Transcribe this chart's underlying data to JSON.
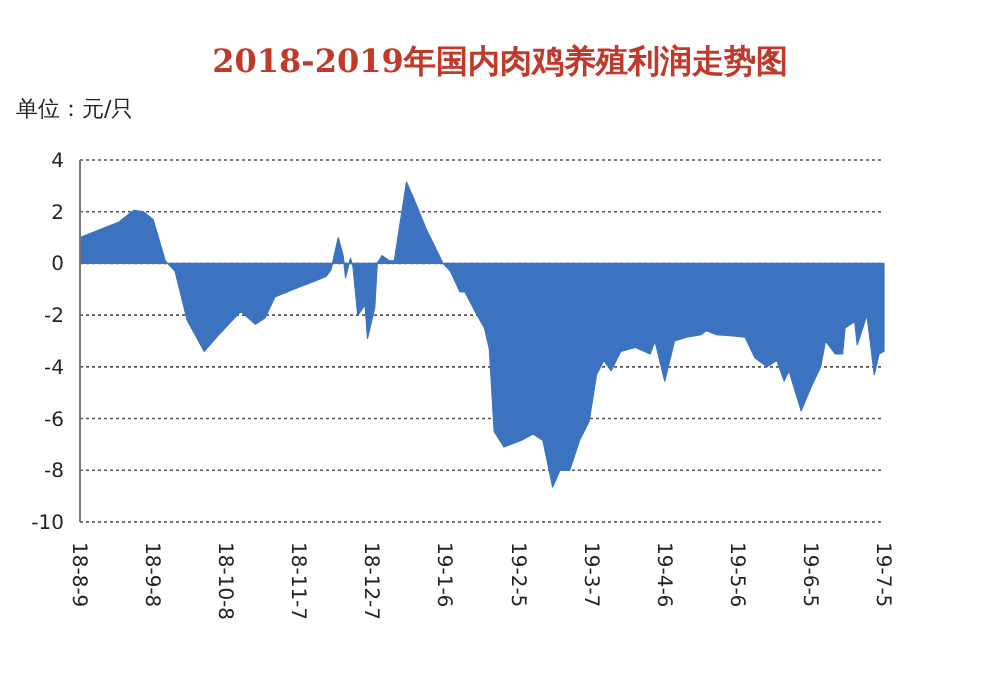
{
  "chart_data": {
    "type": "area",
    "title": "2018-2019年国内肉鸡养殖利润走势图",
    "ylabel": "单位：元/只",
    "xlim": [
      "2018-08-09",
      "2019-07-05"
    ],
    "xticks": [
      {
        "value": "2018-08-09",
        "label": "18-8-9"
      },
      {
        "value": "2018-09-08",
        "label": "18-9-8"
      },
      {
        "value": "2018-10-08",
        "label": "18-10-8"
      },
      {
        "value": "2018-11-07",
        "label": "18-11-7"
      },
      {
        "value": "2018-12-07",
        "label": "18-12-7"
      },
      {
        "value": "2019-01-06",
        "label": "19-1-6"
      },
      {
        "value": "2019-02-05",
        "label": "19-2-5"
      },
      {
        "value": "2019-03-07",
        "label": "19-3-7"
      },
      {
        "value": "2019-04-06",
        "label": "19-4-6"
      },
      {
        "value": "2019-05-06",
        "label": "19-5-6"
      },
      {
        "value": "2019-06-05",
        "label": "19-6-5"
      },
      {
        "value": "2019-07-05",
        "label": "19-7-5"
      }
    ],
    "ylim": [
      -10,
      4
    ],
    "yticks": [
      -10,
      -8,
      -6,
      -4,
      -2,
      0,
      2,
      4
    ],
    "grid": "y",
    "series": [
      {
        "color": "#3b73c0",
        "x": [
          "2018-08-09",
          "2018-08-25",
          "2018-08-31",
          "2018-09-04",
          "2018-09-08",
          "2018-09-13",
          "2018-09-17",
          "2018-09-22",
          "2018-09-29",
          "2018-10-05",
          "2018-10-14",
          "2018-10-20",
          "2018-10-24",
          "2018-10-28",
          "2018-11-02",
          "2018-11-06",
          "2018-11-13",
          "2018-11-18",
          "2018-11-20",
          "2018-11-23",
          "2018-11-25",
          "2018-11-26",
          "2018-11-28",
          "2018-11-29",
          "2018-12-01",
          "2018-12-04",
          "2018-12-05",
          "2018-12-08",
          "2018-12-09",
          "2018-12-11",
          "2018-12-14",
          "2018-12-16",
          "2018-12-21",
          "2018-12-24",
          "2018-12-29",
          "2019-01-05",
          "2019-01-08",
          "2019-01-12",
          "2019-01-14",
          "2019-01-19",
          "2019-01-22",
          "2019-01-24",
          "2019-01-26",
          "2019-01-30",
          "2019-02-06",
          "2019-02-11",
          "2019-02-15",
          "2019-02-19",
          "2019-02-22",
          "2019-02-26",
          "2019-03-02",
          "2019-03-06",
          "2019-03-09",
          "2019-03-12",
          "2019-03-15",
          "2019-03-19",
          "2019-03-25",
          "2019-03-31",
          "2019-04-02",
          "2019-04-06",
          "2019-04-10",
          "2019-04-15",
          "2019-04-21",
          "2019-04-23",
          "2019-04-27",
          "2019-05-04",
          "2019-05-09",
          "2019-05-13",
          "2019-05-18",
          "2019-05-22",
          "2019-05-25",
          "2019-05-27",
          "2019-06-01",
          "2019-06-05",
          "2019-06-09",
          "2019-06-11",
          "2019-06-15",
          "2019-06-18",
          "2019-06-19",
          "2019-06-23",
          "2019-06-24",
          "2019-06-28",
          "2019-06-29",
          "2019-07-01",
          "2019-07-03",
          "2019-07-05"
        ],
        "values": [
          1.0,
          1.6,
          2.05,
          2.0,
          1.7,
          0.1,
          -0.3,
          -2.2,
          -3.4,
          -2.75,
          -1.85,
          -2.35,
          -2.1,
          -1.3,
          -1.1,
          -0.95,
          -0.7,
          -0.5,
          -0.25,
          1.0,
          0.3,
          -0.55,
          0.2,
          -0.1,
          -2.0,
          -1.6,
          -2.9,
          -1.7,
          0,
          0.3,
          0.1,
          0.1,
          3.15,
          2.5,
          1.35,
          0,
          -0.3,
          -1.1,
          -1.1,
          -2.0,
          -2.5,
          -3.3,
          -6.5,
          -7.1,
          -6.85,
          -6.6,
          -6.85,
          -8.65,
          -8.0,
          -8.0,
          -6.85,
          -6.1,
          -4.3,
          -3.75,
          -4.15,
          -3.4,
          -3.25,
          -3.5,
          -3.0,
          -4.55,
          -3.0,
          -2.85,
          -2.75,
          -2.6,
          -2.75,
          -2.8,
          -2.85,
          -3.65,
          -4.0,
          -3.75,
          -4.55,
          -4.15,
          -5.7,
          -4.8,
          -4.0,
          -3.0,
          -3.5,
          -3.5,
          -2.5,
          -2.25,
          -3.15,
          -2.0,
          -2.75,
          -4.3,
          -3.5,
          -3.4
        ]
      }
    ]
  }
}
